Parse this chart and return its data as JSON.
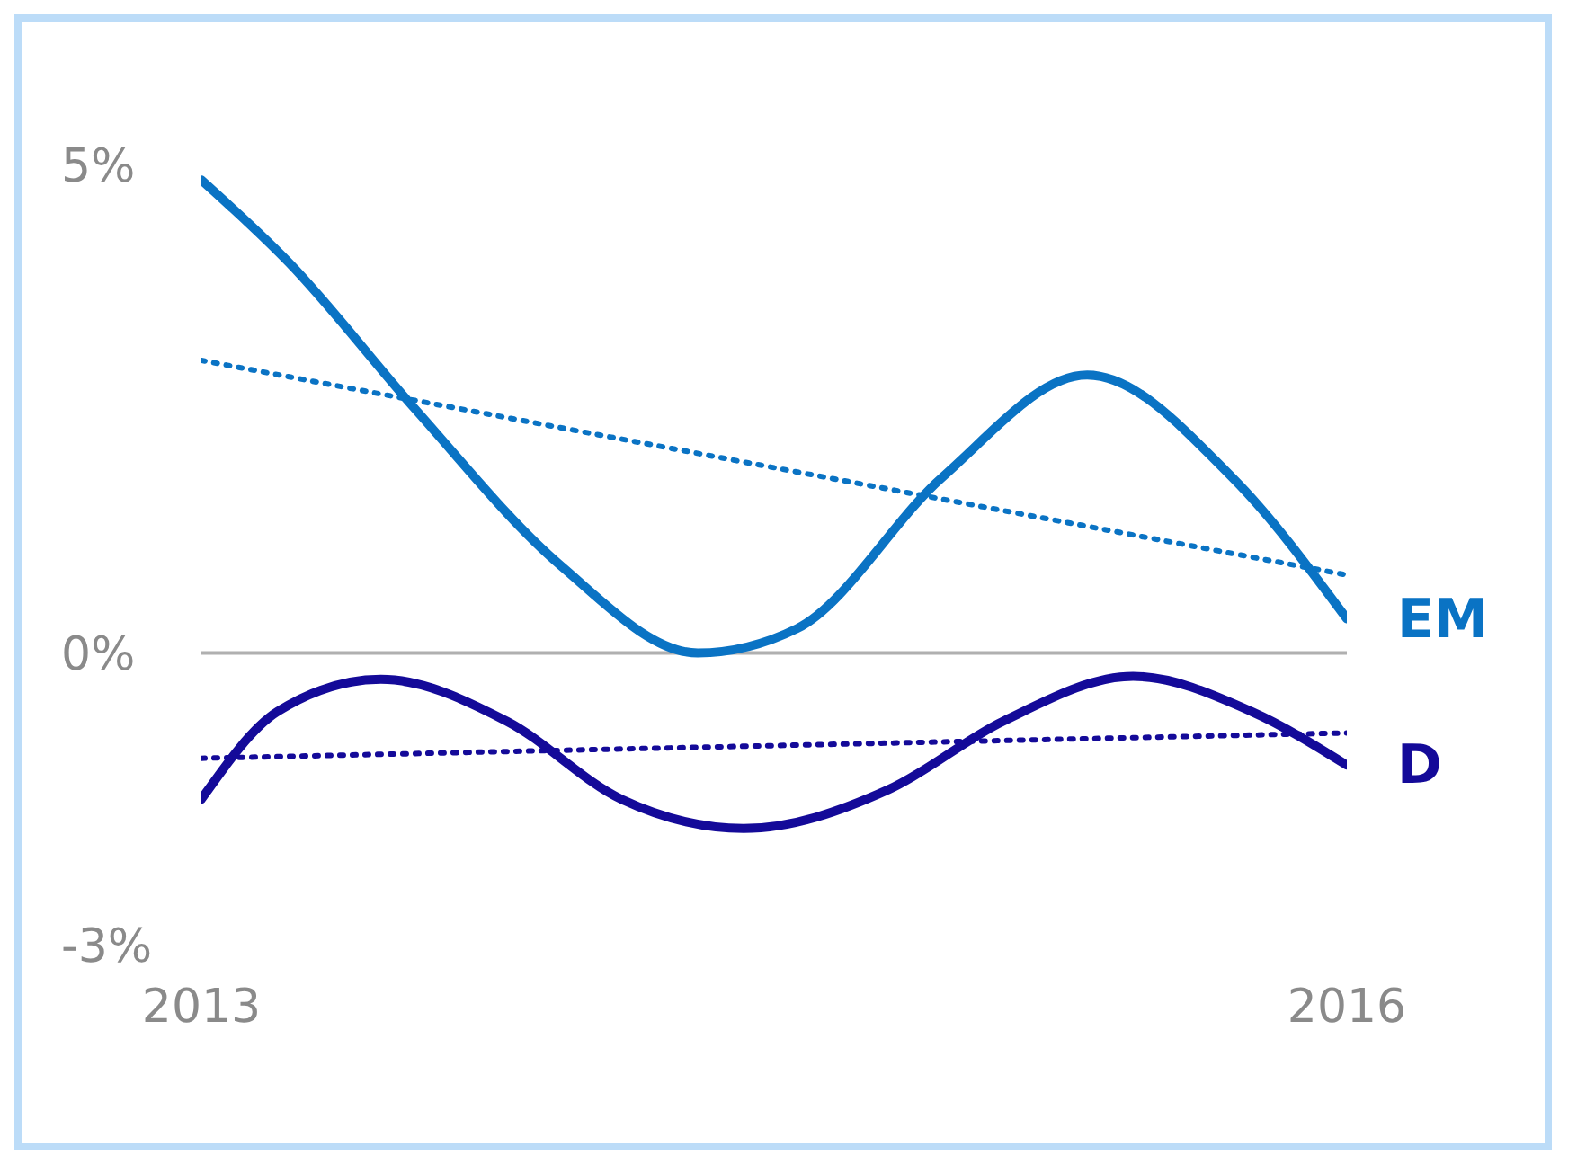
{
  "chart_data": {
    "type": "line",
    "xlim": [
      2013,
      2016
    ],
    "xticks": [
      2013,
      2016
    ],
    "ylim": [
      -3,
      5
    ],
    "yticks": [
      {
        "value": 5,
        "label": "5%"
      },
      {
        "value": 0,
        "label": "0%"
      },
      {
        "value": -3,
        "label": "-3%"
      }
    ],
    "line_style": "solid",
    "marker": "none",
    "ref_lines": [
      {
        "axis": "y",
        "value": 0,
        "color": "#b0b0b0"
      }
    ],
    "series": [
      {
        "name": "EM",
        "color": "#0a73c4",
        "x": [
          2013,
          2013.23,
          2013.56,
          2013.94,
          2014.3,
          2014.56,
          2014.94,
          2015.32,
          2015.7,
          2016
        ],
        "values": [
          4.85,
          4.0,
          2.5,
          0.9,
          0,
          0.25,
          1.8,
          2.85,
          1.8,
          0.35
        ]
      },
      {
        "name": "D",
        "color": "#140a99",
        "x": [
          2013,
          2013.2,
          2013.47,
          2013.8,
          2014.1,
          2014.42,
          2014.8,
          2015.1,
          2015.44,
          2015.75,
          2016
        ],
        "values": [
          -1.5,
          -0.6,
          -0.27,
          -0.7,
          -1.5,
          -1.8,
          -1.4,
          -0.7,
          -0.24,
          -0.6,
          -1.15
        ]
      },
      {
        "type": "line",
        "line_style": "dotted",
        "color": "#0a73c4",
        "x": [
          2013,
          2016
        ],
        "values": [
          3.0,
          0.8
        ]
      },
      {
        "type": "line",
        "line_style": "dotted",
        "color": "#140a99",
        "x": [
          2013,
          2016
        ],
        "values": [
          -1.08,
          -0.82
        ]
      }
    ]
  }
}
